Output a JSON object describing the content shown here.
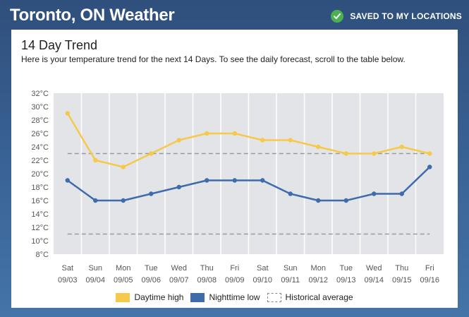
{
  "header": {
    "title": "Toronto, ON Weather",
    "saved_label": "SAVED TO MY LOCATIONS"
  },
  "section": {
    "title": "14 Day Trend",
    "description": "Here is your temperature trend for the next 14 Days. To see the daily forecast, scroll to the table below."
  },
  "colors": {
    "high": "#f5c94a",
    "low": "#3d6bab",
    "historical": "#999999",
    "plot_bg": "#e3e4e8",
    "check": "#4caf50"
  },
  "icons": {
    "saved": "check-circle-icon"
  },
  "chart_data": {
    "type": "line",
    "title": "14 Day Trend",
    "xlabel": "",
    "ylabel": "",
    "ylim": [
      8,
      32
    ],
    "y_step": 2,
    "y_unit": "°C",
    "grid": true,
    "days": [
      "Sat",
      "Sun",
      "Mon",
      "Tue",
      "Wed",
      "Thu",
      "Fri",
      "Sat",
      "Sun",
      "Mon",
      "Tue",
      "Wed",
      "Thu",
      "Fri"
    ],
    "dates": [
      "09/03",
      "09/04",
      "09/05",
      "09/06",
      "09/07",
      "09/08",
      "09/09",
      "09/10",
      "09/11",
      "09/12",
      "09/13",
      "09/14",
      "09/15",
      "09/16"
    ],
    "series": [
      {
        "name": "Daytime high",
        "values": [
          29,
          22,
          21,
          23,
          25,
          26,
          26,
          25,
          25,
          24,
          23,
          23,
          24,
          23
        ]
      },
      {
        "name": "Nighttime low",
        "values": [
          19,
          16,
          16,
          17,
          18,
          19,
          19,
          19,
          17,
          16,
          16,
          17,
          17,
          21
        ]
      }
    ],
    "historical_average": {
      "name": "Historical average",
      "high": 23,
      "low": 11
    },
    "legend_position": "bottom-center"
  }
}
